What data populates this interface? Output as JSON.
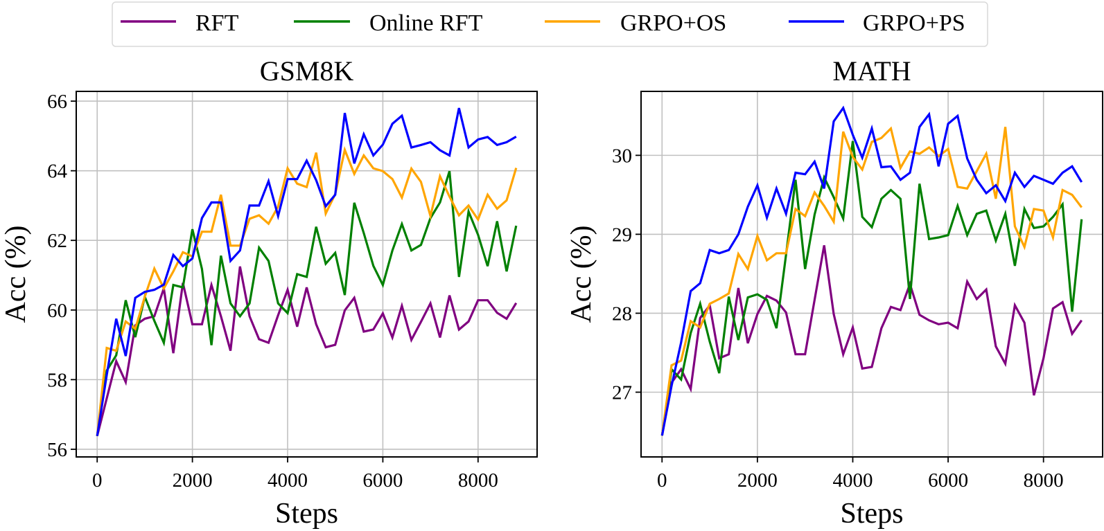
{
  "legend": {
    "position": "top-center",
    "entries": [
      {
        "label": "RFT",
        "color": "#800080"
      },
      {
        "label": "Online RFT",
        "color": "#008000"
      },
      {
        "label": "GRPO+OS",
        "color": "#FFA500"
      },
      {
        "label": "GRPO+PS",
        "color": "#0000FF"
      }
    ]
  },
  "chart_data": [
    {
      "type": "line",
      "title": "GSM8K",
      "xlabel": "Steps",
      "ylabel": "Acc (%)",
      "grid": true,
      "xlim": [
        -440,
        9240
      ],
      "ylim": [
        55.78,
        66.28
      ],
      "xticks": [
        0,
        2000,
        4000,
        6000,
        8000
      ],
      "yticks": [
        56,
        58,
        60,
        62,
        64,
        66
      ],
      "x": [
        0,
        200,
        400,
        600,
        800,
        1000,
        1200,
        1400,
        1600,
        1800,
        2000,
        2200,
        2400,
        2600,
        2800,
        3000,
        3200,
        3400,
        3600,
        3800,
        4000,
        4200,
        4400,
        4600,
        4800,
        5000,
        5200,
        5400,
        5600,
        5800,
        6000,
        6200,
        6400,
        6600,
        6800,
        7000,
        7200,
        7400,
        7600,
        7800,
        8000,
        8200,
        8400,
        8600,
        8800
      ],
      "series": [
        {
          "name": "RFT",
          "color": "#800080",
          "values": [
            56.38,
            57.46,
            58.53,
            57.93,
            59.56,
            59.75,
            59.82,
            60.62,
            58.76,
            60.78,
            59.59,
            59.59,
            60.72,
            59.82,
            58.83,
            61.25,
            59.82,
            59.16,
            59.06,
            59.85,
            60.58,
            59.52,
            60.65,
            59.59,
            58.93,
            59.0,
            59.99,
            60.35,
            59.38,
            59.44,
            59.9,
            59.21,
            60.12,
            59.14,
            59.66,
            60.19,
            59.21,
            60.42,
            59.44,
            59.67,
            60.28,
            60.28,
            59.92,
            59.75,
            60.2
          ]
        },
        {
          "name": "Online RFT",
          "color": "#008000",
          "values": [
            56.38,
            58.26,
            58.7,
            60.28,
            59.22,
            60.38,
            59.69,
            59.06,
            60.72,
            60.65,
            62.32,
            61.18,
            58.99,
            61.56,
            60.19,
            59.82,
            60.19,
            61.79,
            61.41,
            60.19,
            59.91,
            61.03,
            60.95,
            62.39,
            61.33,
            61.64,
            60.43,
            63.08,
            62.21,
            61.27,
            60.72,
            61.71,
            62.47,
            61.71,
            61.87,
            62.64,
            63.09,
            63.99,
            60.95,
            62.83,
            62.16,
            61.26,
            62.55,
            61.11,
            62.42
          ]
        },
        {
          "name": "GRPO+OS",
          "color": "#FFA500",
          "values": [
            56.38,
            58.91,
            58.83,
            59.67,
            59.46,
            60.38,
            61.19,
            60.62,
            61.11,
            61.66,
            61.54,
            62.25,
            62.25,
            63.31,
            61.85,
            61.85,
            62.62,
            62.72,
            62.48,
            62.97,
            64.07,
            63.63,
            63.53,
            64.52,
            62.77,
            63.33,
            64.6,
            63.91,
            64.44,
            64.07,
            63.99,
            63.76,
            63.23,
            64.06,
            63.68,
            62.7,
            63.84,
            63.26,
            62.72,
            63.0,
            62.6,
            63.31,
            62.91,
            63.15,
            64.08
          ]
        },
        {
          "name": "GRPO+PS",
          "color": "#0000FF",
          "values": [
            56.38,
            58.13,
            59.75,
            58.68,
            60.35,
            60.52,
            60.58,
            60.73,
            61.58,
            61.26,
            61.48,
            62.64,
            63.09,
            63.09,
            61.41,
            61.71,
            63.0,
            63.0,
            63.7,
            62.7,
            63.76,
            63.76,
            64.29,
            63.73,
            62.98,
            63.31,
            65.66,
            64.21,
            65.05,
            64.44,
            64.75,
            65.35,
            65.58,
            64.67,
            64.74,
            64.82,
            64.59,
            64.44,
            65.8,
            64.67,
            64.9,
            64.97,
            64.74,
            64.82,
            64.98
          ]
        }
      ]
    },
    {
      "type": "line",
      "title": "MATH",
      "xlabel": "Steps",
      "ylabel": "Acc (%)",
      "grid": true,
      "xlim": [
        -440,
        9240
      ],
      "ylim": [
        26.18,
        30.81
      ],
      "xticks": [
        0,
        2000,
        4000,
        6000,
        8000
      ],
      "yticks": [
        27,
        28,
        29,
        30
      ],
      "x": [
        0,
        200,
        400,
        600,
        800,
        1000,
        1200,
        1400,
        1600,
        1800,
        2000,
        2200,
        2400,
        2600,
        2800,
        3000,
        3200,
        3400,
        3600,
        3800,
        4000,
        4200,
        4400,
        4600,
        4800,
        5000,
        5200,
        5400,
        5600,
        5800,
        6000,
        6200,
        6400,
        6600,
        6800,
        7000,
        7200,
        7400,
        7600,
        7800,
        8000,
        8200,
        8400,
        8600,
        8800
      ],
      "series": [
        {
          "name": "RFT",
          "color": "#800080",
          "values": [
            26.45,
            27.12,
            27.29,
            27.04,
            27.94,
            28.1,
            27.43,
            27.48,
            28.32,
            27.62,
            27.99,
            28.22,
            28.16,
            28.01,
            27.48,
            27.48,
            28.17,
            28.86,
            27.99,
            27.48,
            27.82,
            27.3,
            27.32,
            27.81,
            28.08,
            28.04,
            28.37,
            27.98,
            27.91,
            27.86,
            27.88,
            27.81,
            28.4,
            28.18,
            28.3,
            27.58,
            27.36,
            28.1,
            27.88,
            26.96,
            27.43,
            28.06,
            28.14,
            27.74,
            27.91
          ]
        },
        {
          "name": "Online RFT",
          "color": "#008000",
          "values": [
            26.45,
            27.29,
            27.16,
            27.75,
            28.12,
            27.64,
            27.24,
            28.21,
            27.66,
            28.2,
            28.24,
            28.17,
            27.81,
            28.74,
            29.69,
            28.56,
            29.25,
            29.72,
            29.47,
            29.2,
            30.18,
            29.22,
            29.09,
            29.45,
            29.56,
            29.45,
            28.18,
            29.64,
            28.94,
            28.96,
            28.99,
            29.36,
            28.99,
            29.26,
            29.3,
            28.92,
            29.26,
            28.6,
            29.32,
            29.08,
            29.1,
            29.22,
            29.38,
            28.02,
            29.19
          ]
        },
        {
          "name": "GRPO+OS",
          "color": "#FFA500",
          "values": [
            26.45,
            27.34,
            27.4,
            27.9,
            27.82,
            28.12,
            28.18,
            28.25,
            28.75,
            28.56,
            28.98,
            28.67,
            28.76,
            28.76,
            29.32,
            29.23,
            29.53,
            29.36,
            29.16,
            30.3,
            29.98,
            29.82,
            30.17,
            30.22,
            30.34,
            29.84,
            30.05,
            30.02,
            30.1,
            29.99,
            30.08,
            29.6,
            29.58,
            29.8,
            30.02,
            29.45,
            30.36,
            29.1,
            28.84,
            29.32,
            29.3,
            28.96,
            29.56,
            29.5,
            29.34
          ]
        },
        {
          "name": "GRPO+PS",
          "color": "#0000FF",
          "values": [
            26.45,
            27.08,
            27.63,
            28.28,
            28.38,
            28.8,
            28.76,
            28.8,
            29.0,
            29.35,
            29.62,
            29.21,
            29.58,
            29.26,
            29.78,
            29.76,
            29.92,
            29.58,
            30.43,
            30.6,
            30.26,
            29.97,
            30.34,
            29.85,
            29.86,
            29.69,
            29.78,
            30.36,
            30.52,
            29.86,
            30.4,
            30.5,
            29.96,
            29.69,
            29.52,
            29.62,
            29.42,
            29.78,
            29.6,
            29.74,
            29.69,
            29.64,
            29.78,
            29.86,
            29.66
          ]
        }
      ]
    }
  ]
}
